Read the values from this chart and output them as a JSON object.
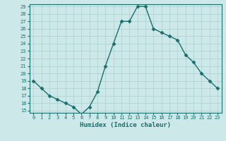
{
  "x": [
    0,
    1,
    2,
    3,
    4,
    5,
    6,
    7,
    8,
    9,
    10,
    11,
    12,
    13,
    14,
    15,
    16,
    17,
    18,
    19,
    20,
    21,
    22,
    23
  ],
  "y": [
    19,
    18,
    17,
    16.5,
    16,
    15.5,
    14.5,
    15.5,
    17.5,
    21,
    24,
    27,
    27,
    29,
    29,
    26,
    25.5,
    25,
    24.5,
    22.5,
    21.5,
    20,
    19,
    18
  ],
  "ylim": [
    15,
    29
  ],
  "xlim": [
    -0.5,
    23.5
  ],
  "yticks": [
    15,
    16,
    17,
    18,
    19,
    20,
    21,
    22,
    23,
    24,
    25,
    26,
    27,
    28,
    29
  ],
  "xticks": [
    0,
    1,
    2,
    3,
    4,
    5,
    6,
    7,
    8,
    9,
    10,
    11,
    12,
    13,
    14,
    15,
    16,
    17,
    18,
    19,
    20,
    21,
    22,
    23
  ],
  "xlabel": "Humidex (Indice chaleur)",
  "line_color": "#1a6e6e",
  "marker": "D",
  "marker_size": 2.5,
  "bg_color": "#cce8e8",
  "grid_color": "#aacfcf",
  "xlabel_color": "#1a6e6e",
  "tick_color": "#1a6e6e",
  "spine_color": "#1a6e6e"
}
